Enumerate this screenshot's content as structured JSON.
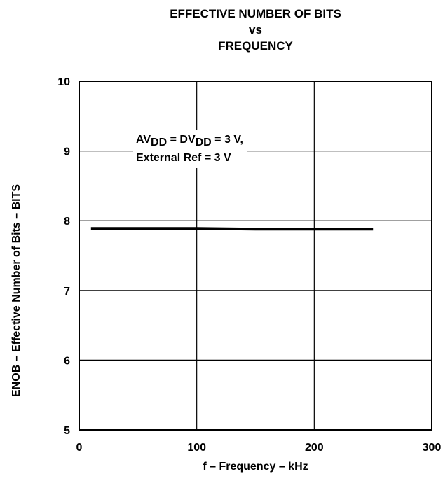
{
  "chart_data": {
    "type": "line",
    "title_lines": [
      "EFFECTIVE NUMBER OF BITS",
      "vs",
      "FREQUENCY"
    ],
    "xlabel": "f – Frequency – kHz",
    "ylabel": "ENOB – Effective Number of Bits – BITS",
    "xlim": [
      0,
      300
    ],
    "ylim": [
      5,
      10
    ],
    "x_ticks": [
      0,
      100,
      200,
      300
    ],
    "y_ticks": [
      5,
      6,
      7,
      8,
      9,
      10
    ],
    "grid": true,
    "series": [
      {
        "x": [
          10,
          50,
          100,
          150,
          200,
          250
        ],
        "y": [
          7.89,
          7.89,
          7.89,
          7.88,
          7.88,
          7.88
        ],
        "color": "#000000"
      }
    ],
    "annotation": {
      "line1_parts": [
        "AV",
        "DD",
        " = DV",
        "DD",
        " = 3 V,"
      ],
      "line2": "External Ref = 3 V"
    }
  }
}
